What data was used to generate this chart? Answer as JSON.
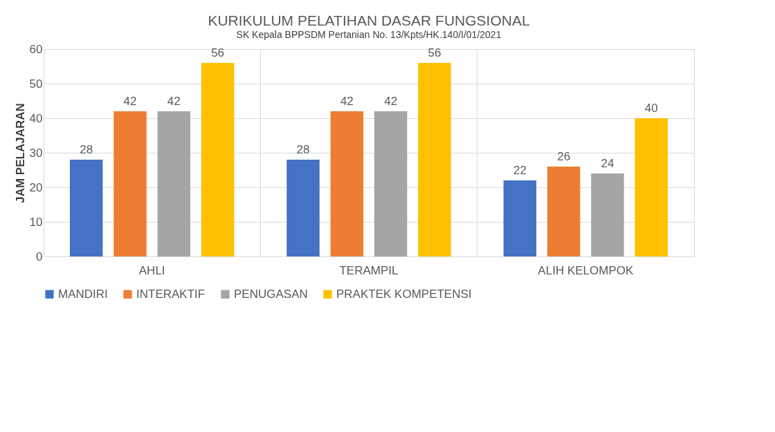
{
  "chart_data": {
    "type": "bar",
    "title": "KURIKULUM PELATIHAN  DASAR FUNGSIONAL",
    "ylabel": "JAM PELAJARAN",
    "categories": [
      "AHLI",
      "TERAMPIL",
      "ALIH KELOMPOK"
    ],
    "series": [
      {
        "name": "MANDIRI",
        "color": "#4472c4",
        "values": [
          28,
          28,
          22
        ]
      },
      {
        "name": "INTERAKTIF",
        "color": "#ed7d31",
        "values": [
          42,
          42,
          26
        ]
      },
      {
        "name": "PENUGASAN",
        "color": "#a5a5a5",
        "values": [
          42,
          42,
          24
        ]
      },
      {
        "name": "PRAKTEK KOMPETENSI",
        "color": "#ffc000",
        "values": [
          56,
          56,
          40
        ]
      }
    ],
    "ylim": [
      0,
      60
    ],
    "yticks": [
      0,
      10,
      20,
      30,
      40,
      50,
      60
    ],
    "grid": true,
    "legend": "bottom",
    "data_labels": true,
    "annotations": [
      "SK Kepala BPPSDM Pertanian No. 13/Kpts/HK.140/I/01/2021"
    ]
  }
}
